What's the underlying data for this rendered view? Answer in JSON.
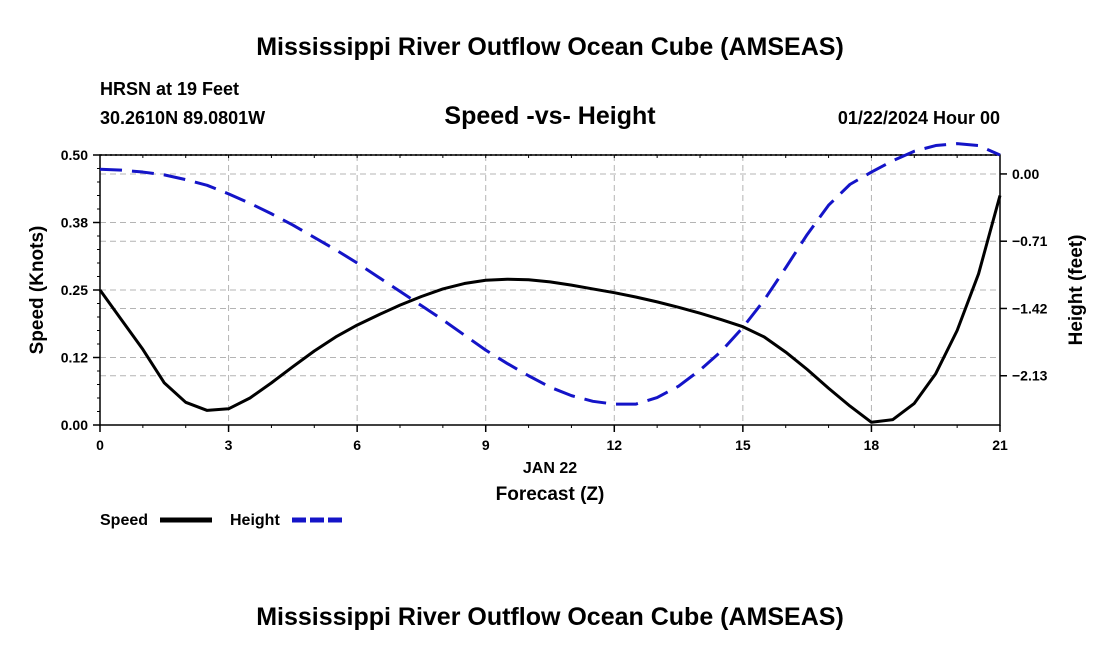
{
  "chart_data": {
    "type": "line",
    "title": "Mississippi River Outflow Ocean Cube (AMSEAS)",
    "subtitle": "Speed -vs- Height",
    "station": "HRSN at 19 Feet",
    "location": "30.2610N  89.0801W",
    "datetime": "01/22/2024 Hour 00",
    "xlabel_date": "JAN 22",
    "xlabel": "Forecast (Z)",
    "ylabel_left": "Speed (Knots)",
    "ylabel_right": "Height (feet)",
    "xlim": [
      0,
      21
    ],
    "ylim_left": [
      0,
      0.5
    ],
    "ylim_right": [
      -2.65,
      0.2
    ],
    "x_ticks": [
      "0",
      "3",
      "6",
      "9",
      "12",
      "15",
      "18",
      "21"
    ],
    "x_tick_values": [
      0,
      3,
      6,
      9,
      12,
      15,
      18,
      21
    ],
    "y_left_ticks": [
      "0.00",
      "0.12",
      "0.25",
      "0.38",
      "0.50"
    ],
    "y_left_tick_values": [
      0,
      0.125,
      0.25,
      0.375,
      0.5
    ],
    "y_right_ticks": [
      "0.00",
      "−0.71",
      "−1.42",
      "−2.13"
    ],
    "y_right_tick_values": [
      0,
      -0.71,
      -1.42,
      -2.13
    ],
    "grid": true,
    "legend": {
      "position": "bottom-left"
    },
    "series": [
      {
        "name": "Speed",
        "axis": "left",
        "color": "#000000",
        "dash": "solid",
        "x": [
          0,
          0.5,
          1,
          1.5,
          2,
          2.5,
          3,
          3.5,
          4,
          4.5,
          5,
          5.5,
          6,
          6.5,
          7,
          7.5,
          8,
          8.5,
          9,
          9.5,
          10,
          10.5,
          11,
          11.5,
          12,
          12.5,
          13,
          13.5,
          14,
          14.5,
          15,
          15.5,
          16,
          16.5,
          17,
          17.5,
          18,
          18.5,
          19,
          19.5,
          20,
          20.5,
          21
        ],
        "values": [
          0.25,
          0.195,
          0.14,
          0.078,
          0.042,
          0.027,
          0.03,
          0.05,
          0.078,
          0.108,
          0.137,
          0.163,
          0.185,
          0.204,
          0.222,
          0.238,
          0.252,
          0.262,
          0.268,
          0.27,
          0.269,
          0.265,
          0.259,
          0.252,
          0.245,
          0.237,
          0.228,
          0.218,
          0.207,
          0.195,
          0.182,
          0.163,
          0.135,
          0.103,
          0.068,
          0.035,
          0.005,
          0.01,
          0.04,
          0.095,
          0.175,
          0.28,
          0.425
        ]
      },
      {
        "name": "Height",
        "axis": "right",
        "color": "#1414c8",
        "dash": "dashed",
        "x": [
          0,
          0.5,
          1,
          1.5,
          2,
          2.5,
          3,
          3.5,
          4,
          4.5,
          5,
          5.5,
          6,
          6.5,
          7,
          7.5,
          8,
          8.5,
          9,
          9.5,
          10,
          10.5,
          11,
          11.5,
          12,
          12.5,
          13,
          13.5,
          14,
          14.5,
          15,
          15.5,
          16,
          16.5,
          17,
          17.5,
          18,
          18.5,
          19,
          19.5,
          20,
          20.5,
          21
        ],
        "values": [
          0.05,
          0.04,
          0.02,
          -0.01,
          -0.06,
          -0.12,
          -0.21,
          -0.31,
          -0.42,
          -0.54,
          -0.67,
          -0.8,
          -0.94,
          -1.09,
          -1.24,
          -1.39,
          -1.54,
          -1.7,
          -1.86,
          -2.0,
          -2.13,
          -2.25,
          -2.34,
          -2.4,
          -2.43,
          -2.43,
          -2.36,
          -2.24,
          -2.07,
          -1.87,
          -1.62,
          -1.33,
          -0.99,
          -0.64,
          -0.33,
          -0.11,
          0.02,
          0.14,
          0.24,
          0.3,
          0.32,
          0.3,
          0.2
        ]
      }
    ]
  },
  "footer_title": "Mississippi River Outflow Ocean Cube (AMSEAS)"
}
